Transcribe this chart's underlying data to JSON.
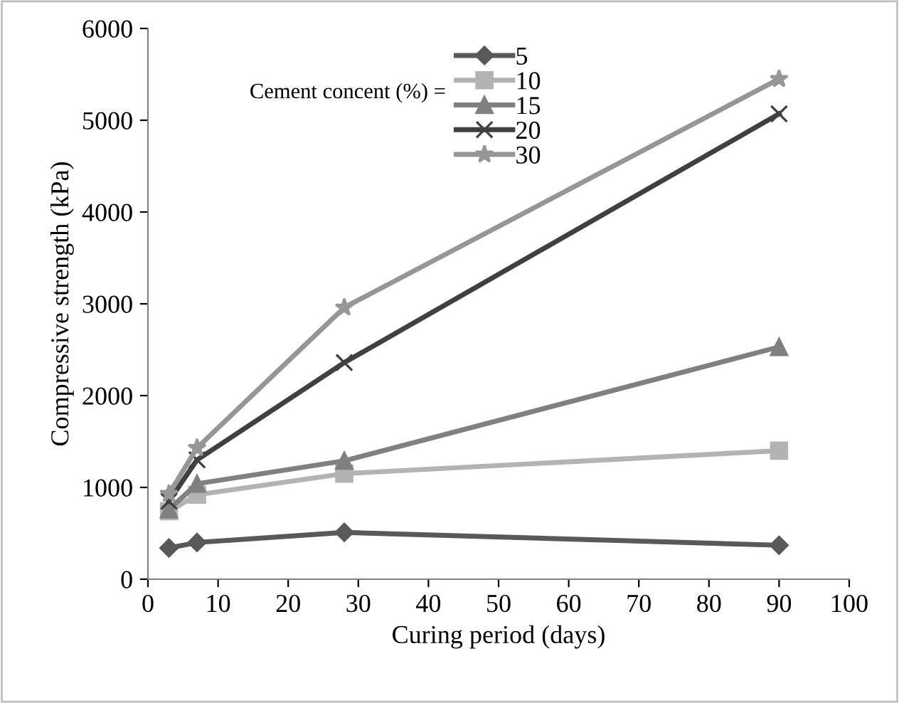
{
  "chart_data": {
    "type": "line",
    "xlabel": "Curing period (days)",
    "ylabel": "Compressive strength (kPa)",
    "legend_title": "Cement concent (%) =",
    "series": [
      {
        "name": "5",
        "color": "#595959",
        "marker": "diamond",
        "x": [
          3,
          7,
          28,
          90
        ],
        "values": [
          340,
          400,
          510,
          370
        ]
      },
      {
        "name": "10",
        "color": "#b3b3b3",
        "marker": "square",
        "x": [
          3,
          7,
          28,
          90
        ],
        "values": [
          740,
          920,
          1150,
          1400
        ]
      },
      {
        "name": "15",
        "color": "#808080",
        "marker": "triangle",
        "x": [
          3,
          7,
          28,
          90
        ],
        "values": [
          760,
          1040,
          1290,
          2530
        ]
      },
      {
        "name": "20",
        "color": "#404040",
        "marker": "cross",
        "x": [
          3,
          7,
          28,
          90
        ],
        "values": [
          850,
          1300,
          2360,
          5070
        ]
      },
      {
        "name": "30",
        "color": "#969696",
        "marker": "star",
        "x": [
          3,
          7,
          28,
          90
        ],
        "values": [
          930,
          1430,
          2960,
          5450
        ]
      }
    ],
    "xlim": [
      0,
      100
    ],
    "xticks": [
      0,
      10,
      20,
      30,
      40,
      50,
      60,
      70,
      80,
      90,
      100
    ],
    "ylim": [
      0,
      6000
    ],
    "yticks": [
      0,
      1000,
      2000,
      3000,
      4000,
      5000,
      6000
    ],
    "grid": false,
    "legend": "top",
    "line_style": "solid"
  }
}
